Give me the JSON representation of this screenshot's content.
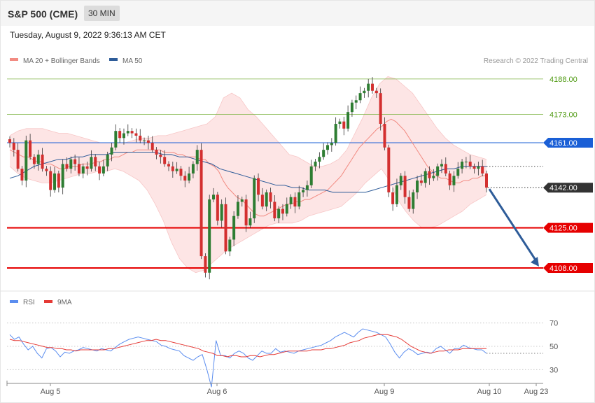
{
  "header": {
    "title": "S&P 500 (CME)",
    "timeframe": "30 MIN",
    "datetime": "Tuesday, August 9, 2022 9:36:13 AM CET"
  },
  "legend_main": [
    {
      "name": "MA 20 + Bollinger Bands",
      "color": "#f28b82"
    },
    {
      "name": "MA 50",
      "color": "#2e5c99"
    }
  ],
  "copyright": "Research © 2022 Trading Central",
  "legend_rsi": [
    {
      "name": "RSI",
      "color": "#5b8def"
    },
    {
      "name": "9MA",
      "color": "#e53935"
    }
  ],
  "colors": {
    "up": "#2e7d32",
    "down": "#d32f2f",
    "band": "#fde0e0",
    "ma20": "#f28b82",
    "ma50": "#2e5c99",
    "resistance": "#7cb342",
    "support": "#e60000",
    "pivot": "#1a5fd6",
    "arrow": "#2e5c99"
  },
  "chart_data": [
    {
      "type": "candlestick",
      "x_ticks": [
        "Aug 5",
        "Aug 6",
        "Aug 9",
        "Aug 10",
        "Aug 23"
      ],
      "ylim": [
        4100,
        4193
      ],
      "levels": [
        {
          "value": 4188.0,
          "label": "4188.00",
          "kind": "resistance"
        },
        {
          "value": 4173.0,
          "label": "4173.00",
          "kind": "resistance"
        },
        {
          "value": 4161.0,
          "label": "4161.00",
          "kind": "pivot"
        },
        {
          "value": 4142.0,
          "label": "4142.00",
          "kind": "last"
        },
        {
          "value": 4125.0,
          "label": "4125.00",
          "kind": "support"
        },
        {
          "value": 4108.0,
          "label": "4108.00",
          "kind": "support"
        }
      ],
      "candles_close": [
        4161,
        4158,
        4150,
        4145,
        4162,
        4155,
        4152,
        4156,
        4150,
        4149,
        4141,
        4148,
        4142,
        4152,
        4150,
        4154,
        4152,
        4148,
        4151,
        4150,
        4155,
        4151,
        4148,
        4151,
        4156,
        4159,
        4166,
        4163,
        4165,
        4166,
        4165,
        4164,
        4162,
        4162,
        4161,
        4158,
        4156,
        4155,
        4152,
        4151,
        4149,
        4150,
        4147,
        4145,
        4148,
        4152,
        4158,
        4113,
        4106,
        4137,
        4139,
        4128,
        4135,
        4115,
        4120,
        4130,
        4136,
        4137,
        4126,
        4129,
        4146,
        4139,
        4134,
        4140,
        4136,
        4129,
        4133,
        4131,
        4135,
        4138,
        4134,
        4140,
        4141,
        4143,
        4151,
        4153,
        4155,
        4158,
        4160,
        4161,
        4169,
        4170,
        4167,
        4174,
        4178,
        4179,
        4182,
        4183,
        4186,
        4183,
        4182,
        4169,
        4159,
        4140,
        4135,
        4143,
        4147,
        4138,
        4133,
        4140,
        4145,
        4144,
        4149,
        4146,
        4147,
        4151,
        4152,
        4148,
        4143,
        4147,
        4150,
        4153,
        4153,
        4151,
        4150,
        4151,
        4148,
        4142
      ],
      "ma20": [
        4158,
        4157,
        4156,
        4155,
        4155,
        4154,
        4153,
        4153,
        4152,
        4152,
        4151,
        4150,
        4150,
        4151,
        4151,
        4151,
        4152,
        4152,
        4152,
        4153,
        4153,
        4154,
        4154,
        4155,
        4155,
        4156,
        4157,
        4157,
        4158,
        4158,
        4158,
        4158,
        4158,
        4158,
        4157,
        4157,
        4157,
        4156,
        4156,
        4155,
        4155,
        4155,
        4154,
        4154,
        4152,
        4151,
        4149,
        4145,
        4142,
        4140,
        4138,
        4137,
        4135,
        4133,
        4131,
        4130,
        4130,
        4131,
        4132,
        4133,
        4134,
        4135,
        4135,
        4136,
        4136,
        4137,
        4137,
        4138,
        4139,
        4140,
        4141,
        4143,
        4145,
        4147,
        4150,
        4153,
        4156,
        4159,
        4161,
        4163,
        4165,
        4167,
        4168,
        4170,
        4171,
        4170,
        4168,
        4166,
        4163,
        4160,
        4157,
        4154,
        4151,
        4149,
        4147,
        4146,
        4146,
        4145,
        4144,
        4144,
        4145,
        4145,
        4146,
        4146,
        4147,
        4147
      ],
      "ma50": [
        4146,
        4147,
        4149,
        4151,
        4152,
        4153,
        4154,
        4154,
        4155,
        4155,
        4156,
        4156,
        4156,
        4157,
        4157,
        4157,
        4157,
        4157,
        4157,
        4156,
        4156,
        4155,
        4155,
        4154,
        4153,
        4152,
        4150,
        4149,
        4148,
        4147,
        4146,
        4145,
        4144,
        4143,
        4143,
        4142,
        4142,
        4141,
        4141,
        4141,
        4140,
        4140,
        4140,
        4140,
        4140,
        4141,
        4142,
        4143,
        4144,
        4145,
        4146,
        4147,
        4148,
        4149,
        4150,
        4150,
        4151,
        4151,
        4151,
        4151
      ],
      "bb_upper": [
        4164,
        4166,
        4167,
        4167,
        4167,
        4166,
        4165,
        4165,
        4164,
        4163,
        4162,
        4161,
        4161,
        4161,
        4161,
        4162,
        4163,
        4163,
        4164,
        4164,
        4165,
        4166,
        4167,
        4168,
        4169,
        4172,
        4180,
        4182,
        4180,
        4175,
        4172,
        4168,
        4164,
        4160,
        4156,
        4155,
        4153,
        4151,
        4151,
        4152,
        4154,
        4158,
        4165,
        4172,
        4180,
        4186,
        4189,
        4188,
        4185,
        4182,
        4177,
        4172,
        4167,
        4163,
        4160,
        4158,
        4156,
        4155,
        4154
      ],
      "bb_lower": [
        4151,
        4148,
        4146,
        4145,
        4144,
        4144,
        4145,
        4146,
        4147,
        4148,
        4148,
        4149,
        4149,
        4150,
        4149,
        4147,
        4145,
        4141,
        4135,
        4128,
        4119,
        4112,
        4108,
        4106,
        4107,
        4110,
        4113,
        4116,
        4118,
        4120,
        4122,
        4124,
        4126,
        4127,
        4127,
        4127,
        4128,
        4130,
        4131,
        4132,
        4133,
        4134,
        4137,
        4140,
        4144,
        4147,
        4150,
        4145,
        4137,
        4132,
        4128,
        4125,
        4125,
        4126,
        4128,
        4130,
        4132,
        4135,
        4137,
        4139
      ]
    },
    {
      "type": "line",
      "ylim": [
        20,
        80
      ],
      "y_ticks": [
        70,
        50,
        30
      ],
      "rsi": [
        60,
        56,
        58,
        52,
        47,
        50,
        44,
        40,
        48,
        49,
        46,
        41,
        45,
        44,
        46,
        47,
        49,
        48,
        47,
        46,
        48,
        47,
        46,
        49,
        52,
        54,
        56,
        57,
        58,
        57,
        56,
        55,
        54,
        51,
        50,
        48,
        47,
        46,
        42,
        40,
        38,
        41,
        43,
        30,
        15,
        55,
        42,
        42,
        40,
        44,
        46,
        44,
        40,
        38,
        42,
        46,
        44,
        44,
        48,
        45,
        46,
        45,
        44,
        46,
        47,
        48,
        49,
        50,
        51,
        53,
        55,
        58,
        60,
        62,
        60,
        58,
        62,
        65,
        64,
        63,
        62,
        60,
        58,
        52,
        45,
        40,
        45,
        48,
        46,
        43,
        44,
        45,
        44,
        48,
        50,
        47,
        44,
        48,
        48,
        51,
        49,
        48,
        47,
        47,
        44
      ],
      "ma9": [
        56,
        55,
        55,
        54,
        53,
        52,
        51,
        50,
        49,
        49,
        48,
        48,
        47,
        47,
        46,
        47,
        47,
        47,
        47,
        47,
        47,
        48,
        48,
        49,
        50,
        51,
        52,
        53,
        54,
        55,
        55,
        56,
        55,
        55,
        54,
        53,
        52,
        51,
        50,
        49,
        48,
        46,
        45,
        44,
        42,
        42,
        41,
        42,
        42,
        41,
        41,
        42,
        42,
        41,
        42,
        43,
        43,
        44,
        45,
        46,
        46,
        46,
        46,
        46,
        47,
        47,
        47,
        48,
        48,
        49,
        50,
        51,
        53,
        54,
        55,
        57,
        58,
        59,
        60,
        60,
        60,
        59,
        58,
        56,
        53,
        50,
        48,
        46,
        45,
        44,
        45,
        46,
        46,
        47,
        47,
        47,
        48,
        48,
        48,
        48,
        48,
        48
      ]
    }
  ]
}
